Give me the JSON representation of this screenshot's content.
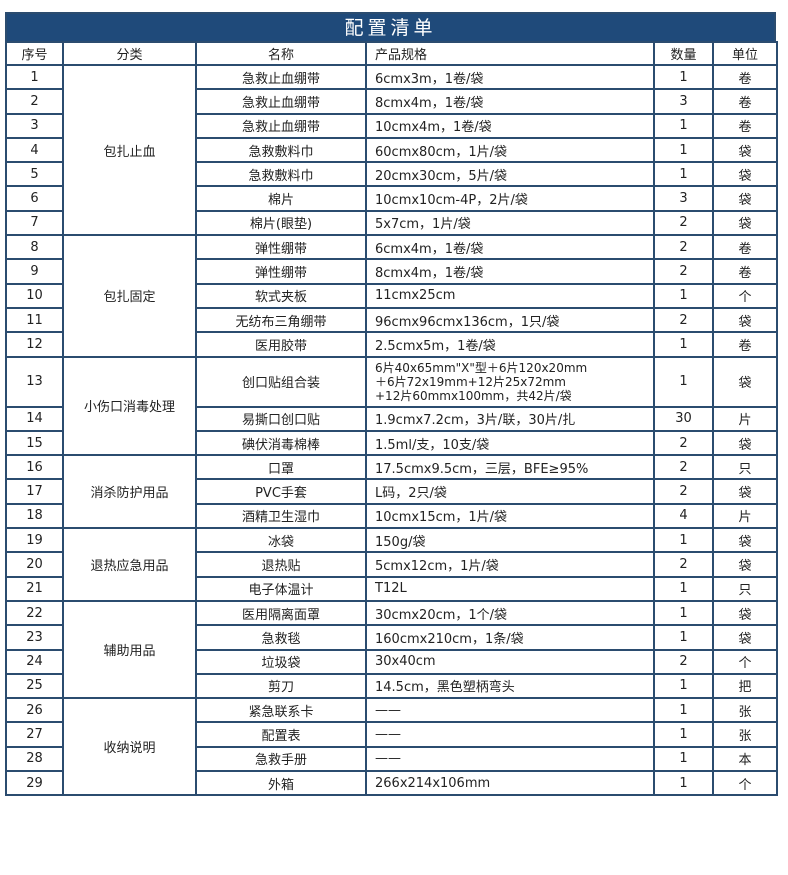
{
  "title": "配置清单",
  "headers": {
    "no": "序号",
    "category": "分类",
    "name": "名称",
    "spec": "产品规格",
    "qty": "数量",
    "unit": "单位"
  },
  "groups": [
    {
      "category": "包扎止血",
      "items": [
        {
          "no": "1",
          "name": "急救止血绷带",
          "spec": "6cmx3m，1卷/袋",
          "qty": "1",
          "unit": "卷"
        },
        {
          "no": "2",
          "name": "急救止血绷带",
          "spec": "8cmx4m，1卷/袋",
          "qty": "3",
          "unit": "卷"
        },
        {
          "no": "3",
          "name": "急救止血绷带",
          "spec": "10cmx4m，1卷/袋",
          "qty": "1",
          "unit": "卷"
        },
        {
          "no": "4",
          "name": "急救敷料巾",
          "spec": "60cmx80cm，1片/袋",
          "qty": "1",
          "unit": "袋"
        },
        {
          "no": "5",
          "name": "急救敷料巾",
          "spec": "20cmx30cm，5片/袋",
          "qty": "1",
          "unit": "袋"
        },
        {
          "no": "6",
          "name": "棉片",
          "spec": "10cmx10cm-4P，2片/袋",
          "qty": "3",
          "unit": "袋"
        },
        {
          "no": "7",
          "name": "棉片(眼垫)",
          "spec": "5x7cm，1片/袋",
          "qty": "2",
          "unit": "袋"
        }
      ]
    },
    {
      "category": "包扎固定",
      "items": [
        {
          "no": "8",
          "name": "弹性绷带",
          "spec": "6cmx4m，1卷/袋",
          "qty": "2",
          "unit": "卷"
        },
        {
          "no": "9",
          "name": "弹性绷带",
          "spec": "8cmx4m，1卷/袋",
          "qty": "2",
          "unit": "卷"
        },
        {
          "no": "10",
          "name": "软式夹板",
          "spec": "11cmx25cm",
          "qty": "1",
          "unit": "个"
        },
        {
          "no": "11",
          "name": "无纺布三角绷带",
          "spec": "96cmx96cmx136cm，1只/袋",
          "qty": "2",
          "unit": "袋"
        },
        {
          "no": "12",
          "name": "医用胶带",
          "spec": "2.5cmx5m，1卷/袋",
          "qty": "1",
          "unit": "卷"
        }
      ]
    },
    {
      "category": "小伤口消毒处理",
      "items": [
        {
          "no": "13",
          "name": "创口贴组合装",
          "spec_lines": [
            "6片40x65mm\"X\"型＋6片120x20mm",
            "＋6片72x19mm+12片25x72mm",
            "+12片60mmx100mm，共42片/袋"
          ],
          "qty": "1",
          "unit": "袋"
        },
        {
          "no": "14",
          "name": "易撕口创口贴",
          "spec": "1.9cmx7.2cm，3片/联，30片/扎",
          "qty": "30",
          "unit": "片"
        },
        {
          "no": "15",
          "name": "碘伏消毒棉棒",
          "spec": "1.5ml/支，10支/袋",
          "qty": "2",
          "unit": "袋"
        }
      ]
    },
    {
      "category": "消杀防护用品",
      "items": [
        {
          "no": "16",
          "name": "口罩",
          "spec": "17.5cmx9.5cm，三层，BFE≥95%",
          "qty": "2",
          "unit": "只"
        },
        {
          "no": "17",
          "name": "PVC手套",
          "spec": "L码，2只/袋",
          "qty": "2",
          "unit": "袋"
        },
        {
          "no": "18",
          "name": "酒精卫生湿巾",
          "spec": "10cmx15cm，1片/袋",
          "qty": "4",
          "unit": "片"
        }
      ]
    },
    {
      "category": "退热应急用品",
      "items": [
        {
          "no": "19",
          "name": "冰袋",
          "spec": "150g/袋",
          "qty": "1",
          "unit": "袋"
        },
        {
          "no": "20",
          "name": "退热贴",
          "spec": "5cmx12cm，1片/袋",
          "qty": "2",
          "unit": "袋"
        },
        {
          "no": "21",
          "name": "电子体温计",
          "spec": "T12L",
          "qty": "1",
          "unit": "只"
        }
      ]
    },
    {
      "category": "辅助用品",
      "items": [
        {
          "no": "22",
          "name": "医用隔离面罩",
          "spec": "30cmx20cm，1个/袋",
          "qty": "1",
          "unit": "袋"
        },
        {
          "no": "23",
          "name": "急救毯",
          "spec": "160cmx210cm，1条/袋",
          "qty": "1",
          "unit": "袋"
        },
        {
          "no": "24",
          "name": "垃圾袋",
          "spec": "30x40cm",
          "qty": "2",
          "unit": "个"
        },
        {
          "no": "25",
          "name": "剪刀",
          "spec": "14.5cm，黑色塑柄弯头",
          "qty": "1",
          "unit": "把"
        }
      ]
    },
    {
      "category": "收纳说明",
      "items": [
        {
          "no": "26",
          "name": "紧急联系卡",
          "spec": "——",
          "qty": "1",
          "unit": "张"
        },
        {
          "no": "27",
          "name": "配置表",
          "spec": "——",
          "qty": "1",
          "unit": "张"
        },
        {
          "no": "28",
          "name": "急救手册",
          "spec": "——",
          "qty": "1",
          "unit": "本"
        },
        {
          "no": "29",
          "name": "外箱",
          "spec": "266x214x106mm",
          "qty": "1",
          "unit": "个"
        }
      ]
    }
  ],
  "colors": {
    "title_bg": "#1f4a7a",
    "border": "#2b4c6f"
  }
}
